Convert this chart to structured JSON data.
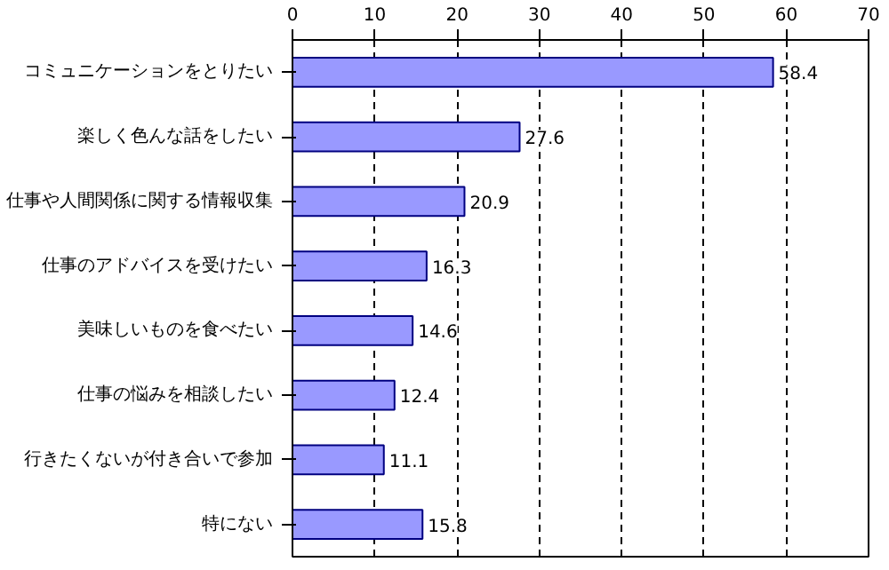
{
  "chart_data": {
    "type": "bar",
    "orientation": "horizontal",
    "categories": [
      "コミュニケーションをとりたい",
      "楽しく色んな話をしたい",
      "仕事や人間関係に関する情報収集",
      "仕事のアドバイスを受けたい",
      "美味しいものを食べたい",
      "仕事の悩みを相談したい",
      "行きたくないが付き合いで参加",
      "特にない"
    ],
    "values": [
      58.4,
      27.6,
      20.9,
      16.3,
      14.6,
      12.4,
      11.1,
      15.8
    ],
    "color": "#9999ff",
    "xlim": [
      0,
      70
    ],
    "xticks": [
      0,
      10,
      20,
      30,
      40,
      50,
      60,
      70
    ],
    "grid": "x",
    "data_labels": true
  }
}
